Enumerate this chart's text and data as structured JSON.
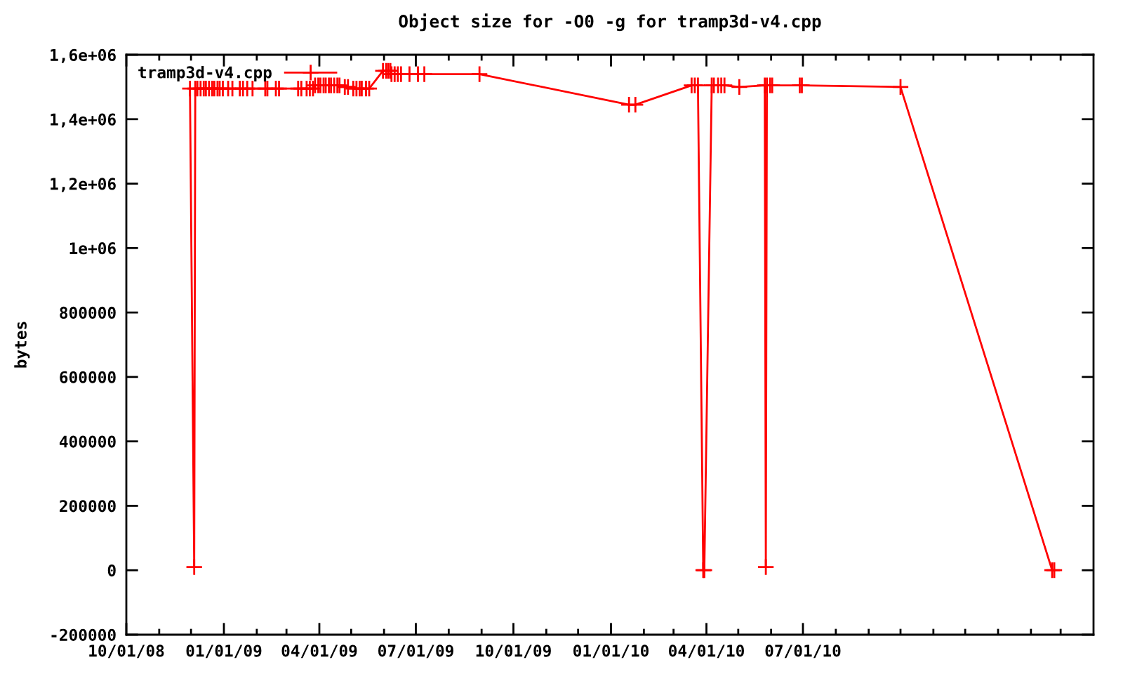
{
  "chart_data": {
    "type": "line",
    "title": "Object size for -O0 -g for tramp3d-v4.cpp",
    "ylabel": "bytes",
    "series": [
      {
        "name": "tramp3d-v4.cpp",
        "color": "#ff0000",
        "marker": "cross",
        "line_style": "solid",
        "x": [
          "2008-11-30",
          "2008-12-04",
          "2008-12-05",
          "2008-12-07",
          "2008-12-10",
          "2008-12-13",
          "2008-12-15",
          "2008-12-18",
          "2008-12-21",
          "2008-12-23",
          "2008-12-26",
          "2008-12-28",
          "2008-12-31",
          "2009-01-05",
          "2009-01-09",
          "2009-01-16",
          "2009-01-19",
          "2009-01-23",
          "2009-01-28",
          "2009-02-09",
          "2009-02-11",
          "2009-02-19",
          "2009-02-22",
          "2009-03-12",
          "2009-03-15",
          "2009-03-20",
          "2009-03-23",
          "2009-03-26",
          "2009-03-28",
          "2009-03-31",
          "2009-04-02",
          "2009-04-05",
          "2009-04-07",
          "2009-04-10",
          "2009-04-12",
          "2009-04-15",
          "2009-04-18",
          "2009-04-20",
          "2009-04-25",
          "2009-04-28",
          "2009-05-03",
          "2009-05-06",
          "2009-05-09",
          "2009-05-11",
          "2009-05-15",
          "2009-05-18",
          "2009-05-31",
          "2009-06-03",
          "2009-06-05",
          "2009-06-07",
          "2009-06-08",
          "2009-06-11",
          "2009-06-14",
          "2009-06-17",
          "2009-06-25",
          "2009-07-03",
          "2009-07-09",
          "2009-08-30",
          "2010-01-18",
          "2010-01-24",
          "2010-03-18",
          "2010-03-21",
          "2010-03-24",
          "2010-03-29",
          "2010-03-30",
          "2010-04-06",
          "2010-04-08",
          "2010-04-12",
          "2010-04-15",
          "2010-04-18",
          "2010-05-02",
          "2010-05-26",
          "2010-05-27",
          "2010-05-28",
          "2010-05-31",
          "2010-06-02",
          "2010-06-28",
          "2010-06-30",
          "2010-10-01",
          "2011-02-21",
          "2011-02-23"
        ],
        "values": [
          1495000,
          10000,
          1495000,
          1495000,
          1495000,
          1495000,
          1495000,
          1495000,
          1495000,
          1495000,
          1495000,
          1495000,
          1495000,
          1495000,
          1495000,
          1495000,
          1495000,
          1495000,
          1495000,
          1495000,
          1495000,
          1495000,
          1495000,
          1495000,
          1495000,
          1495000,
          1495000,
          1495000,
          1505000,
          1505000,
          1505000,
          1505000,
          1505000,
          1505000,
          1505000,
          1505000,
          1505000,
          1505000,
          1500000,
          1500000,
          1495000,
          1495000,
          1495000,
          1495000,
          1495000,
          1495000,
          1550000,
          1550000,
          1550000,
          1550000,
          1540000,
          1540000,
          1540000,
          1540000,
          1540000,
          1540000,
          1540000,
          1540000,
          1445000,
          1445000,
          1505000,
          1505000,
          1505000,
          0,
          0,
          1505000,
          1505000,
          1505000,
          1505000,
          1505000,
          1500000,
          1505000,
          10000,
          1505000,
          1505000,
          1505000,
          1505000,
          1505000,
          1500000,
          0,
          0
        ]
      }
    ],
    "xlim": [
      "2008-10-01",
      "2011-04-01"
    ],
    "xticks": [
      {
        "value": "2008-10-01",
        "label": "10/01/08"
      },
      {
        "value": "2008-11-01",
        "label": null
      },
      {
        "value": "2008-12-01",
        "label": null
      },
      {
        "value": "2009-01-01",
        "label": "01/01/09"
      },
      {
        "value": "2009-02-01",
        "label": null
      },
      {
        "value": "2009-03-01",
        "label": null
      },
      {
        "value": "2009-04-01",
        "label": "04/01/09"
      },
      {
        "value": "2009-05-01",
        "label": null
      },
      {
        "value": "2009-06-01",
        "label": null
      },
      {
        "value": "2009-07-01",
        "label": "07/01/09"
      },
      {
        "value": "2009-08-01",
        "label": null
      },
      {
        "value": "2009-09-01",
        "label": null
      },
      {
        "value": "2009-10-01",
        "label": "10/01/09"
      },
      {
        "value": "2009-11-01",
        "label": null
      },
      {
        "value": "2009-12-01",
        "label": null
      },
      {
        "value": "2010-01-01",
        "label": "01/01/10"
      },
      {
        "value": "2010-02-01",
        "label": null
      },
      {
        "value": "2010-03-01",
        "label": null
      },
      {
        "value": "2010-04-01",
        "label": "04/01/10"
      },
      {
        "value": "2010-05-01",
        "label": null
      },
      {
        "value": "2010-06-01",
        "label": null
      },
      {
        "value": "2010-07-01",
        "label": "07/01/10"
      },
      {
        "value": "2010-08-01",
        "label": null
      },
      {
        "value": "2010-09-01",
        "label": null
      },
      {
        "value": "2010-10-01",
        "label": null
      },
      {
        "value": "2010-11-01",
        "label": null
      },
      {
        "value": "2010-12-01",
        "label": null
      },
      {
        "value": "2011-01-01",
        "label": null
      },
      {
        "value": "2011-02-01",
        "label": null
      },
      {
        "value": "2011-03-01",
        "label": null
      }
    ],
    "ylim": [
      -200000,
      1600000
    ],
    "yticks": [
      -200000,
      0,
      200000,
      400000,
      600000,
      800000,
      {
        "value": 1000000,
        "label": "1e+06"
      },
      {
        "value": 1200000,
        "label": "1,2e+06"
      },
      {
        "value": 1400000,
        "label": "1,4e+06"
      },
      {
        "value": 1600000,
        "label": "1,6e+06"
      }
    ],
    "legend": "top left"
  }
}
